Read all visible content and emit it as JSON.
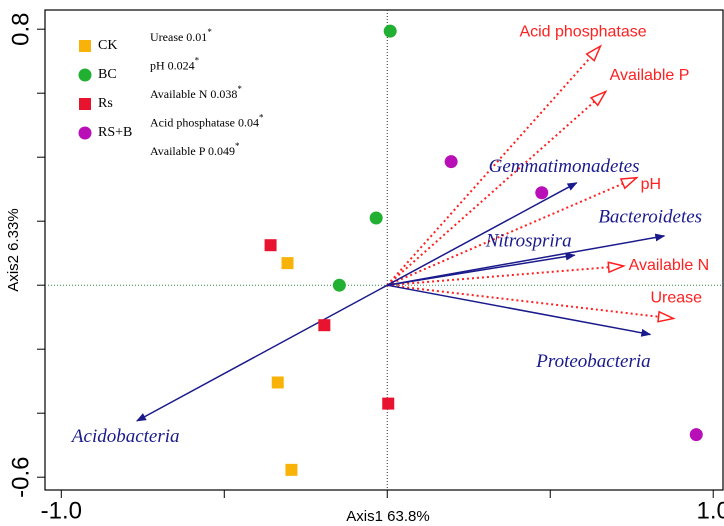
{
  "chart_data": {
    "type": "scatter",
    "xlabel": "Axis1 63.8%",
    "ylabel": "Axis2 6.33%",
    "xlim": [
      -1.05,
      1.03
    ],
    "ylim": [
      -0.64,
      0.86
    ],
    "xticks": [
      {
        "value": -1.0,
        "label": "-1.0"
      },
      {
        "value": -0.5,
        "label": null
      },
      {
        "value": 0,
        "label": null
      },
      {
        "value": 0.5,
        "label": null
      },
      {
        "value": 1.0,
        "label": "1.0"
      }
    ],
    "yticks": [
      {
        "value": -0.6,
        "label": "-0.6"
      },
      {
        "value": -0.4,
        "label": null
      },
      {
        "value": -0.2,
        "label": null
      },
      {
        "value": 0,
        "label": null
      },
      {
        "value": 0.2,
        "label": null
      },
      {
        "value": 0.4,
        "label": null
      },
      {
        "value": 0.6,
        "label": null
      },
      {
        "value": 0.8,
        "label": "0.8"
      }
    ],
    "series": [
      {
        "name": "CK",
        "color": "#f9b208",
        "marker": "square",
        "x": [
          -0.306,
          -0.336,
          -0.294
        ],
        "values": [
          0.069,
          -0.304,
          -0.577
        ]
      },
      {
        "name": "BC",
        "color": "#22b033",
        "marker": "circle",
        "x": [
          0.009,
          -0.034,
          -0.147
        ],
        "values": [
          0.794,
          0.21,
          0.0
        ]
      },
      {
        "name": "Rs",
        "color": "#e8132f",
        "marker": "square",
        "x": [
          -0.358,
          -0.193,
          0.003
        ],
        "values": [
          0.125,
          -0.125,
          -0.37
        ]
      },
      {
        "name": "RS+B",
        "color": "#b90fb7",
        "marker": "circle",
        "x": [
          0.196,
          0.474,
          0.948
        ],
        "values": [
          0.386,
          0.289,
          -0.467
        ]
      }
    ],
    "species": {
      "color": "#1a1a8c",
      "names": [
        "Gemmatimonadetes",
        "Bacteroidetes",
        "Nitrosprira",
        "Proteobacteria",
        "Acidobacteria"
      ],
      "x": [
        0.581,
        0.85,
        0.575,
        0.807,
        -0.768
      ],
      "y": [
        0.32,
        0.154,
        0.094,
        -0.154,
        -0.424
      ]
    },
    "environment": {
      "color": "#ff2020",
      "names": [
        "Acid phosphatase",
        "Available P",
        "pH",
        "Available N",
        "Urease"
      ],
      "x": [
        0.654,
        0.67,
        0.765,
        0.725,
        0.878
      ],
      "y": [
        0.747,
        0.605,
        0.336,
        0.06,
        -0.104
      ]
    },
    "annotations": [
      "Urease 0.01*",
      "pH 0.024*",
      "Available N 0.038*",
      "Acid phosphatase 0.04*",
      "Available P 0.049*"
    ]
  }
}
